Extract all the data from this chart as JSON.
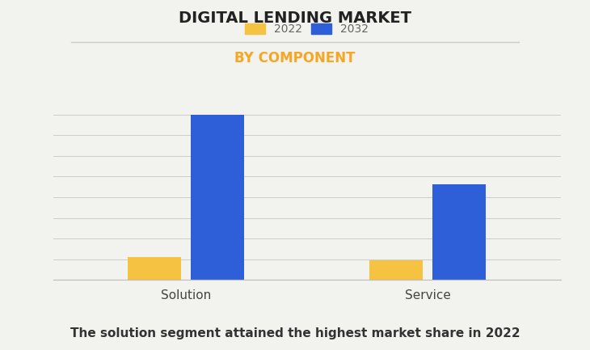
{
  "title": "DIGITAL LENDING MARKET",
  "subtitle": "BY COMPONENT",
  "subtitle_color": "#F5A623",
  "categories": [
    "Solution",
    "Service"
  ],
  "series": [
    {
      "label": "2022",
      "values": [
        14,
        12
      ],
      "color": "#F5C242"
    },
    {
      "label": "2032",
      "values": [
        100,
        58
      ],
      "color": "#2E5FD9"
    }
  ],
  "footnote": "The solution segment attained the highest market share in 2022",
  "background_color": "#F2F2EE",
  "bar_width": 0.22,
  "title_fontsize": 14,
  "subtitle_fontsize": 12,
  "footnote_fontsize": 11,
  "tick_fontsize": 11,
  "legend_fontsize": 10,
  "ylim": [
    0,
    110
  ],
  "n_gridlines": 9
}
